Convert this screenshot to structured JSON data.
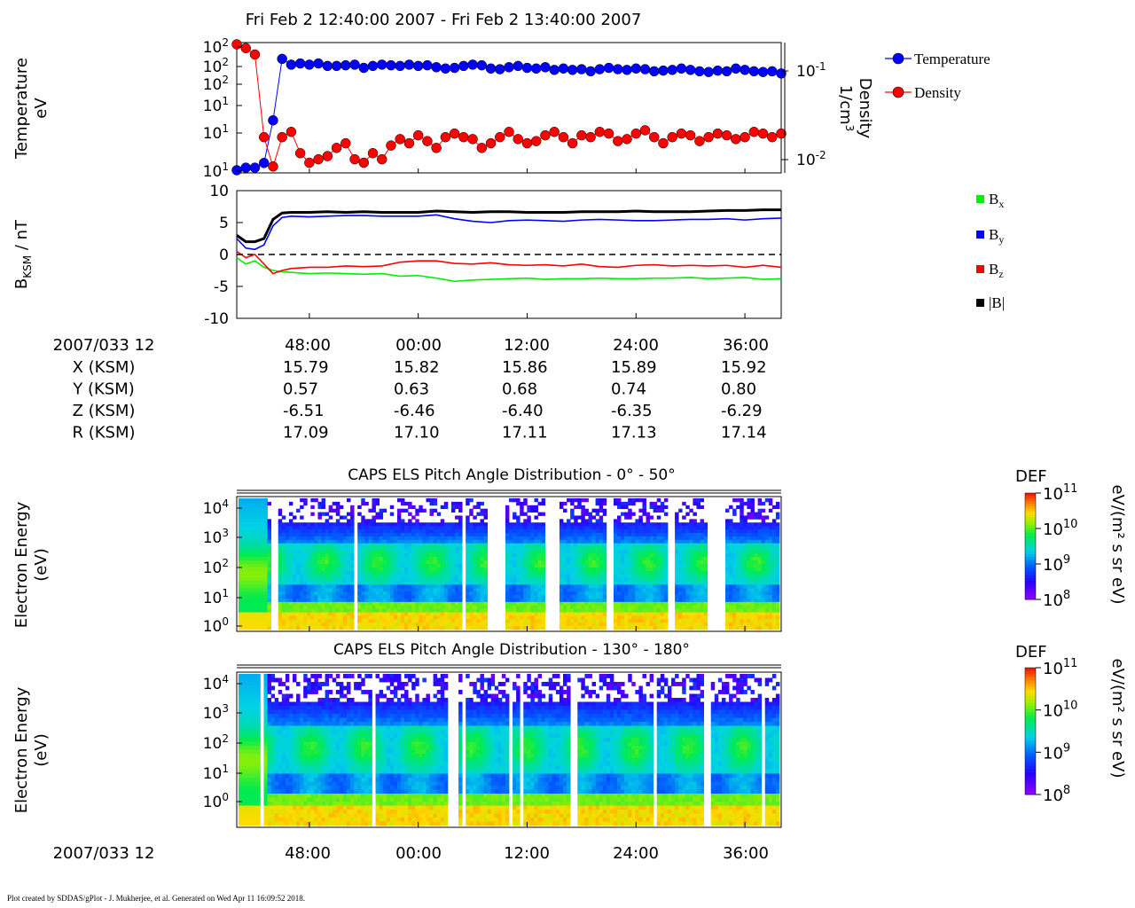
{
  "title": "Fri Feb 2 12:40:00 2007 - Fri Feb 2 13:40:00 2007",
  "footer": "Plot created by SDDAS/gPlot - J. Mukherjee, et al.  Generated on Wed Apr 11 16:09:52 2018.",
  "colors": {
    "temperature": "#0000ff",
    "density": "#ff0000",
    "bx": "#00ee00",
    "by": "#0000ff",
    "bz": "#ff0000",
    "btot": "#000000"
  },
  "time_axis": {
    "ticks": [
      "48:00",
      "00:00",
      "12:00",
      "24:00",
      "36:00"
    ],
    "label": "2007/033 12",
    "eph_rows": [
      {
        "label": "X (KSM)",
        "values": [
          "15.79",
          "15.82",
          "15.86",
          "15.89",
          "15.92"
        ]
      },
      {
        "label": "Y (KSM)",
        "values": [
          "0.57",
          "0.63",
          "0.68",
          "0.74",
          "0.80"
        ]
      },
      {
        "label": "Z (KSM)",
        "values": [
          "-6.51",
          "-6.46",
          "-6.40",
          "-6.35",
          "-6.29"
        ]
      },
      {
        "label": "R (KSM)",
        "values": [
          "17.09",
          "17.10",
          "17.11",
          "17.13",
          "17.14"
        ]
      }
    ]
  },
  "chart_data": [
    {
      "type": "scatter",
      "ylabel_line1": "Temperature",
      "ylabel_line2": "eV",
      "y2label_line1": "Density",
      "y2label_line2": "1/cm",
      "y2label_sup": "3",
      "left_ticks": [
        {
          "base": "10",
          "exp": "2"
        },
        {
          "base": "10",
          "exp": "2"
        },
        {
          "base": "10",
          "exp": "2"
        },
        {
          "base": "10",
          "exp": "1"
        },
        {
          "base": "10",
          "exp": "1"
        },
        {
          "base": "10",
          "exp": "1"
        }
      ],
      "right_ticks": [
        {
          "base": "10",
          "exp": "-1"
        },
        {
          "base": "10",
          "exp": "-2"
        }
      ],
      "legend": [
        "Temperature",
        "Density"
      ],
      "x_minutes": [
        40,
        41,
        42,
        43,
        44,
        45,
        46,
        47,
        48,
        49,
        50,
        51,
        52,
        53,
        54,
        55,
        56,
        57,
        58,
        59,
        60,
        61,
        62,
        63,
        64,
        65,
        66,
        67,
        68,
        69,
        70,
        71,
        72,
        73,
        74,
        75,
        76,
        77,
        78,
        79,
        80,
        81,
        82,
        83,
        84,
        85,
        86,
        87,
        88,
        89,
        90,
        91,
        92,
        93,
        94,
        95,
        96,
        97,
        98,
        99,
        100
      ],
      "series": [
        {
          "name": "Temperature",
          "values": [
            9.5,
            10,
            10,
            11,
            26,
            90,
            80,
            82,
            80,
            82,
            78,
            78,
            79,
            80,
            75,
            78,
            80,
            79,
            78,
            80,
            78,
            79,
            76,
            74,
            75,
            78,
            80,
            79,
            74,
            73,
            76,
            78,
            75,
            74,
            76,
            72,
            74,
            72,
            73,
            70,
            73,
            75,
            73,
            72,
            74,
            73,
            70,
            71,
            72,
            74,
            72,
            70,
            69,
            71,
            70,
            74,
            72,
            70,
            69,
            70,
            67
          ],
          "y_unit": "eV"
        },
        {
          "name": "Density",
          "values": [
            0.22,
            0.2,
            0.17,
            0.021,
            0.01,
            0.021,
            0.024,
            0.014,
            0.011,
            0.012,
            0.013,
            0.016,
            0.018,
            0.012,
            0.011,
            0.014,
            0.012,
            0.017,
            0.02,
            0.018,
            0.022,
            0.019,
            0.016,
            0.021,
            0.023,
            0.021,
            0.02,
            0.016,
            0.018,
            0.021,
            0.024,
            0.02,
            0.018,
            0.019,
            0.022,
            0.024,
            0.021,
            0.018,
            0.022,
            0.021,
            0.024,
            0.023,
            0.019,
            0.02,
            0.023,
            0.025,
            0.021,
            0.018,
            0.021,
            0.023,
            0.022,
            0.019,
            0.021,
            0.023,
            0.022,
            0.02,
            0.021,
            0.024,
            0.023,
            0.021,
            0.023
          ],
          "y_unit": "1/cm3"
        }
      ]
    },
    {
      "type": "line",
      "ylabel_main": "B",
      "ylabel_sub": "KSM",
      "ylabel_rest": " / nT",
      "ylim": [
        -10,
        10
      ],
      "y_ticks": [
        "10",
        "5",
        "0",
        "-5",
        "-10"
      ],
      "legend": [
        {
          "base": "B",
          "sub": "x"
        },
        {
          "base": "B",
          "sub": "y"
        },
        {
          "base": "B",
          "sub": "z"
        },
        {
          "base": "|B|",
          "sub": ""
        }
      ],
      "x_minutes": [
        40,
        41,
        42,
        43,
        44,
        45,
        46,
        48,
        50,
        52,
        54,
        56,
        58,
        60,
        62,
        64,
        66,
        68,
        70,
        72,
        74,
        76,
        78,
        80,
        82,
        84,
        86,
        88,
        90,
        92,
        94,
        96,
        98,
        100
      ],
      "series": [
        {
          "name": "Bx",
          "values": [
            -0.5,
            -1.5,
            -1.0,
            -2.0,
            -2.5,
            -2.7,
            -2.8,
            -3.0,
            -2.9,
            -3.0,
            -3.1,
            -3.0,
            -3.4,
            -3.3,
            -3.7,
            -4.2,
            -4.0,
            -3.9,
            -3.8,
            -3.7,
            -3.9,
            -3.8,
            -3.8,
            -3.7,
            -3.8,
            -3.8,
            -3.7,
            -3.7,
            -3.6,
            -3.8,
            -3.7,
            -3.6,
            -3.9,
            -3.8
          ]
        },
        {
          "name": "By",
          "values": [
            2.5,
            1.0,
            0.8,
            1.5,
            4.5,
            5.8,
            6.0,
            5.9,
            6.0,
            6.1,
            6.1,
            6.0,
            6.0,
            6.0,
            6.2,
            5.6,
            5.2,
            5.0,
            5.3,
            5.4,
            5.3,
            5.2,
            5.4,
            5.5,
            5.4,
            5.3,
            5.3,
            5.4,
            5.5,
            5.5,
            5.6,
            5.4,
            5.6,
            5.7
          ]
        },
        {
          "name": "Bz",
          "values": [
            0.5,
            -0.5,
            0.0,
            -1.5,
            -3.0,
            -2.5,
            -2.2,
            -2.0,
            -2.0,
            -1.8,
            -1.9,
            -1.8,
            -1.2,
            -1.0,
            -1.0,
            -1.4,
            -1.5,
            -1.3,
            -1.6,
            -1.7,
            -1.6,
            -1.8,
            -1.5,
            -1.9,
            -2.0,
            -1.7,
            -1.6,
            -1.8,
            -1.7,
            -1.8,
            -1.7,
            -2.0,
            -1.7,
            -2.0
          ]
        },
        {
          "name": "|B|",
          "values": [
            3.0,
            2.0,
            2.0,
            2.5,
            5.5,
            6.5,
            6.6,
            6.6,
            6.7,
            6.6,
            6.7,
            6.6,
            6.6,
            6.6,
            6.8,
            6.7,
            6.6,
            6.7,
            6.7,
            6.6,
            6.6,
            6.6,
            6.7,
            6.7,
            6.7,
            6.8,
            6.7,
            6.7,
            6.7,
            6.8,
            6.9,
            6.9,
            7.0,
            7.0
          ]
        }
      ],
      "zero_line": true
    },
    {
      "type": "heatmap",
      "title": "CAPS ELS Pitch Angle Distribution - 0° - 50°",
      "ylabel_line1": "Electron Energy",
      "ylabel_line2": "(eV)",
      "y_ticks": [
        {
          "base": "10",
          "exp": "4"
        },
        {
          "base": "10",
          "exp": "3"
        },
        {
          "base": "10",
          "exp": "2"
        },
        {
          "base": "10",
          "exp": "1"
        },
        {
          "base": "10",
          "exp": "0"
        }
      ],
      "y_range_log10_eV": [
        0,
        4.3
      ],
      "data_gaps_minutes": [
        [
          43.3,
          43.6
        ],
        [
          44.0,
          44.3
        ],
        [
          52.6,
          52.8
        ],
        [
          64.7,
          64.9
        ],
        [
          67.6,
          69.5
        ],
        [
          74.0,
          75.5
        ],
        [
          80.5,
          81.2
        ],
        [
          87.2,
          87.8
        ],
        [
          87.9,
          88.2
        ],
        [
          92.0,
          93.6
        ]
      ],
      "colorbar": {
        "title": "DEF",
        "units": "eV/(m² s sr eV)",
        "ticks": [
          {
            "base": "10",
            "exp": "11"
          },
          {
            "base": "10",
            "exp": "10"
          },
          {
            "base": "10",
            "exp": "9"
          },
          {
            "base": "10",
            "exp": "8"
          }
        ],
        "range_log10": [
          8,
          11
        ]
      }
    },
    {
      "type": "heatmap",
      "title": "CAPS ELS Pitch Angle Distribution - 130° - 180°",
      "ylabel_line1": "Electron Energy",
      "ylabel_line2": "(eV)",
      "y_ticks": [
        {
          "base": "10",
          "exp": "4"
        },
        {
          "base": "10",
          "exp": "3"
        },
        {
          "base": "10",
          "exp": "2"
        },
        {
          "base": "10",
          "exp": "1"
        },
        {
          "base": "10",
          "exp": "0"
        }
      ],
      "y_range_log10_eV": [
        0,
        4.3
      ],
      "data_gaps_minutes": [
        [
          42.3,
          42.6
        ],
        [
          54.7,
          54.9
        ],
        [
          63.0,
          64.0
        ],
        [
          64.5,
          64.8
        ],
        [
          69.7,
          70.3
        ],
        [
          71.2,
          71.5
        ],
        [
          76.6,
          77.2
        ],
        [
          85.8,
          86.3
        ],
        [
          91.6,
          92.0
        ],
        [
          97.9,
          98.2
        ]
      ],
      "colorbar": {
        "title": "DEF",
        "units": "eV/(m² s sr eV)",
        "ticks": [
          {
            "base": "10",
            "exp": "11"
          },
          {
            "base": "10",
            "exp": "10"
          },
          {
            "base": "10",
            "exp": "9"
          },
          {
            "base": "10",
            "exp": "8"
          }
        ],
        "range_log10": [
          8,
          11
        ]
      }
    }
  ]
}
